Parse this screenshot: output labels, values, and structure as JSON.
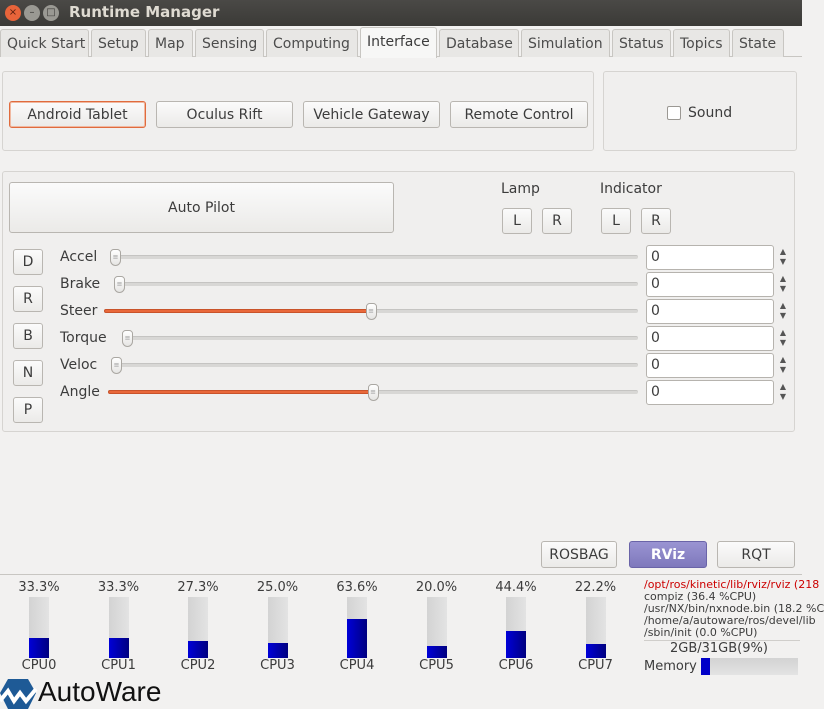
{
  "window": {
    "title": "Runtime Manager",
    "close": "×",
    "minimize": "–",
    "maximize": "□"
  },
  "tabs": [
    {
      "label": "Quick Start"
    },
    {
      "label": "Setup"
    },
    {
      "label": "Map"
    },
    {
      "label": "Sensing"
    },
    {
      "label": "Computing"
    },
    {
      "label": "Interface",
      "active": true
    },
    {
      "label": "Database"
    },
    {
      "label": "Simulation"
    },
    {
      "label": "Status"
    },
    {
      "label": "Topics"
    },
    {
      "label": "State"
    }
  ],
  "devices": {
    "android_tablet": "Android Tablet",
    "oculus_rift": "Oculus Rift",
    "vehicle_gateway": "Vehicle Gateway",
    "remote_control": "Remote Control",
    "sound": {
      "label": "Sound",
      "checked": false
    }
  },
  "control": {
    "auto_pilot": "Auto Pilot",
    "lamp": {
      "label": "Lamp",
      "left": "L",
      "right": "R"
    },
    "indicator": {
      "label": "Indicator",
      "left": "L",
      "right": "R"
    },
    "gears": [
      "D",
      "R",
      "B",
      "N",
      "P"
    ],
    "sliders": [
      {
        "label": "Accel",
        "value": "0",
        "level": 0
      },
      {
        "label": "Brake",
        "value": "0",
        "level": 0
      },
      {
        "label": "Steer",
        "value": "0",
        "level": 50
      },
      {
        "label": "Torque",
        "value": "0",
        "level": 0
      },
      {
        "label": "Veloc",
        "value": "0",
        "level": 0
      },
      {
        "label": "Angle",
        "value": "0",
        "level": 50
      }
    ]
  },
  "tools": {
    "rosbag": "ROSBAG",
    "rviz": "RViz",
    "rqt": "RQT"
  },
  "cpus": [
    {
      "name": "CPU0",
      "pct": "33.3%",
      "v": 33.3
    },
    {
      "name": "CPU1",
      "pct": "33.3%",
      "v": 33.3
    },
    {
      "name": "CPU2",
      "pct": "27.3%",
      "v": 27.3
    },
    {
      "name": "CPU3",
      "pct": "25.0%",
      "v": 25.0
    },
    {
      "name": "CPU4",
      "pct": "63.6%",
      "v": 63.6
    },
    {
      "name": "CPU5",
      "pct": "20.0%",
      "v": 20.0
    },
    {
      "name": "CPU6",
      "pct": "44.4%",
      "v": 44.4
    },
    {
      "name": "CPU7",
      "pct": "22.2%",
      "v": 22.2
    }
  ],
  "processes": [
    "/opt/ros/kinetic/lib/rviz/rviz (218",
    "compiz (36.4 %CPU)",
    "/usr/NX/bin/nxnode.bin (18.2 %C",
    "/home/a/autoware/ros/devel/lib",
    "/sbin/init (0.0 %CPU)"
  ],
  "memory": {
    "text": "2GB/31GB(9%)",
    "label": "Memory",
    "pct": 9
  },
  "logo": "AutoWare",
  "colors": {
    "accent": "#e9683a",
    "cpu_fill": "#0000c8",
    "process_highlight": "#cc0000",
    "rviz_button": "#8a84c6"
  }
}
